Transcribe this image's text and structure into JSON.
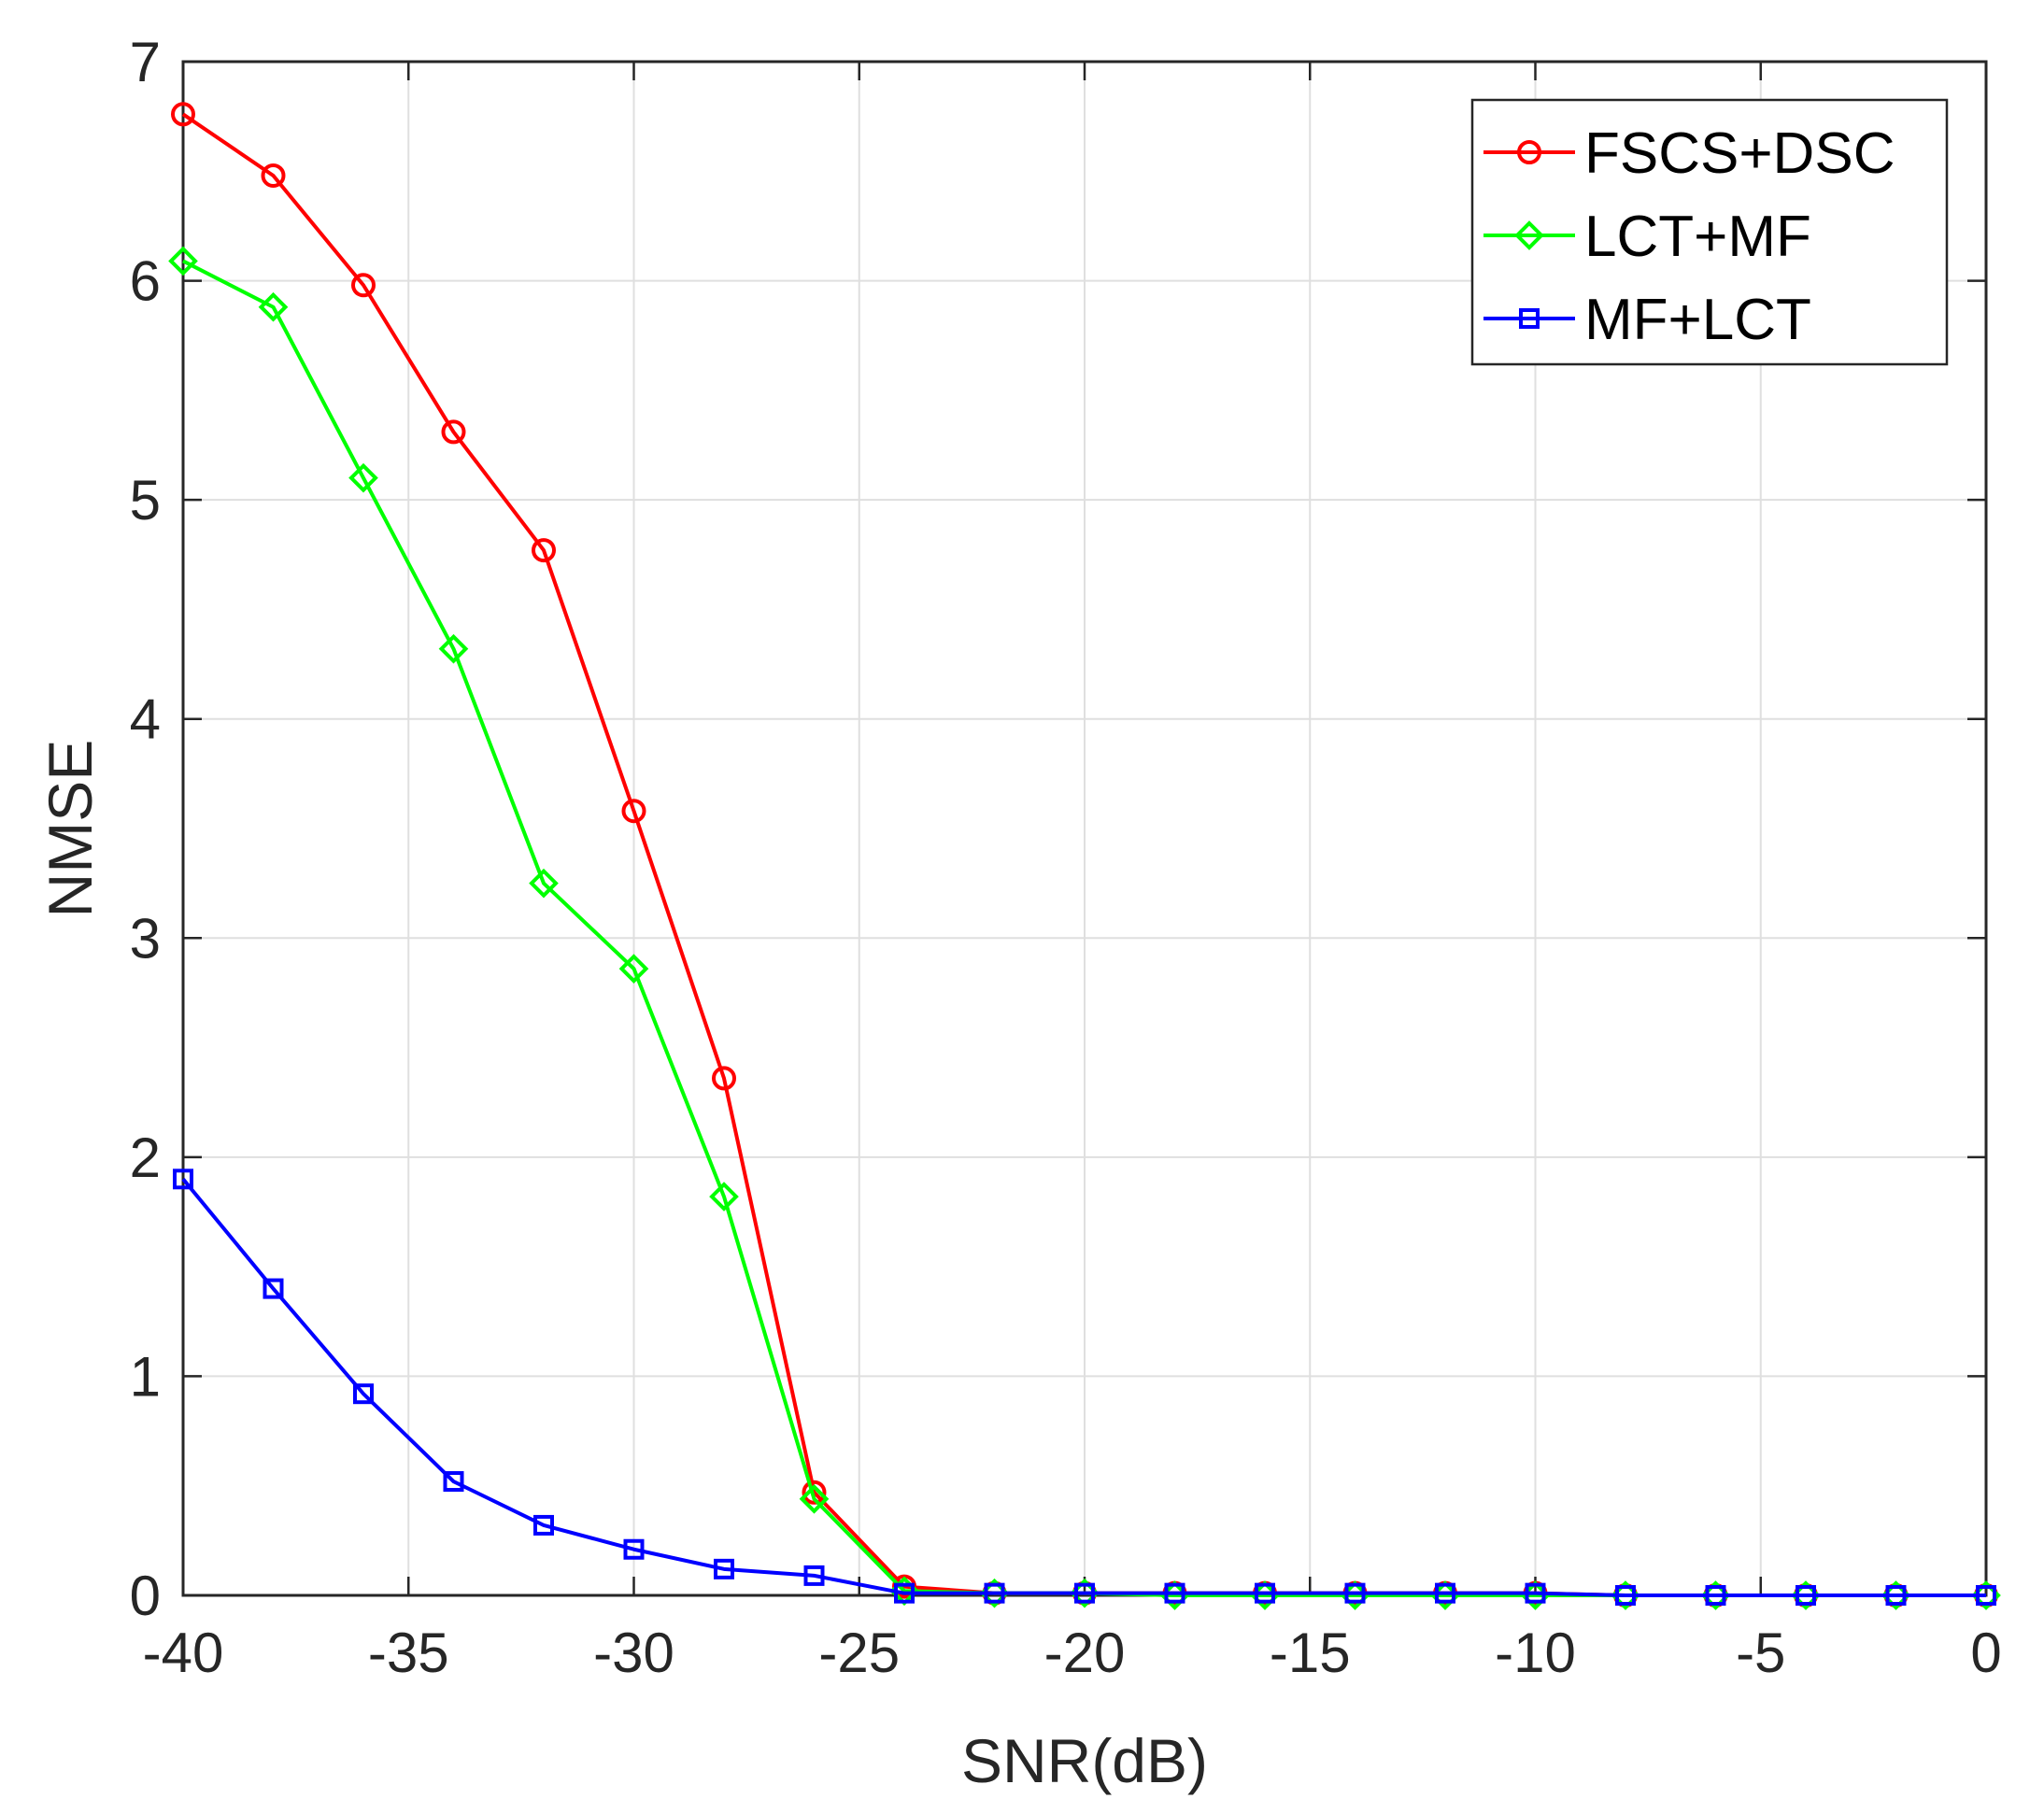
{
  "chart_data": {
    "type": "line",
    "title": "",
    "xlabel": "SNR(dB)",
    "ylabel": "NMSE",
    "xlim": [
      -40,
      0
    ],
    "ylim": [
      0,
      7
    ],
    "grid": true,
    "legend_position": "top-right",
    "x": [
      -40,
      -38,
      -36,
      -34,
      -32,
      -30,
      -28,
      -26,
      -24,
      -22,
      -20,
      -18,
      -16,
      -14,
      -12,
      -10,
      -8,
      -6,
      -4,
      -2,
      0
    ],
    "x_ticks": [
      -40,
      -35,
      -30,
      -25,
      -20,
      -15,
      -10,
      -5,
      0
    ],
    "y_ticks": [
      0,
      1,
      2,
      3,
      4,
      5,
      6,
      7
    ],
    "x_tick_labels": [
      "-40",
      "-35",
      "-30",
      "-25",
      "-20",
      "-15",
      "-10",
      "-5",
      "0"
    ],
    "y_tick_labels": [
      "0",
      "1",
      "2",
      "3",
      "4",
      "5",
      "6",
      "7"
    ],
    "series": [
      {
        "name": "FSCS+DSC",
        "color": "#ff0000",
        "marker": "circle",
        "values": [
          6.76,
          6.48,
          5.98,
          5.31,
          4.77,
          3.58,
          2.36,
          0.47,
          0.04,
          0.01,
          0.01,
          0.01,
          0.01,
          0.01,
          0.01,
          0.01,
          0.0,
          0.0,
          0.0,
          0.0,
          0.0
        ]
      },
      {
        "name": "LCT+MF",
        "color": "#00ff00",
        "marker": "diamond",
        "values": [
          6.09,
          5.88,
          5.1,
          4.32,
          3.25,
          2.86,
          1.82,
          0.44,
          0.02,
          0.01,
          0.01,
          0.0,
          0.0,
          0.0,
          0.0,
          0.0,
          0.0,
          0.0,
          0.0,
          0.0,
          0.0
        ]
      },
      {
        "name": "MF+LCT",
        "color": "#0000ff",
        "marker": "square",
        "values": [
          1.9,
          1.4,
          0.92,
          0.52,
          0.32,
          0.21,
          0.12,
          0.09,
          0.01,
          0.01,
          0.01,
          0.01,
          0.01,
          0.01,
          0.01,
          0.01,
          0.0,
          0.0,
          0.0,
          0.0,
          0.0
        ]
      }
    ]
  }
}
